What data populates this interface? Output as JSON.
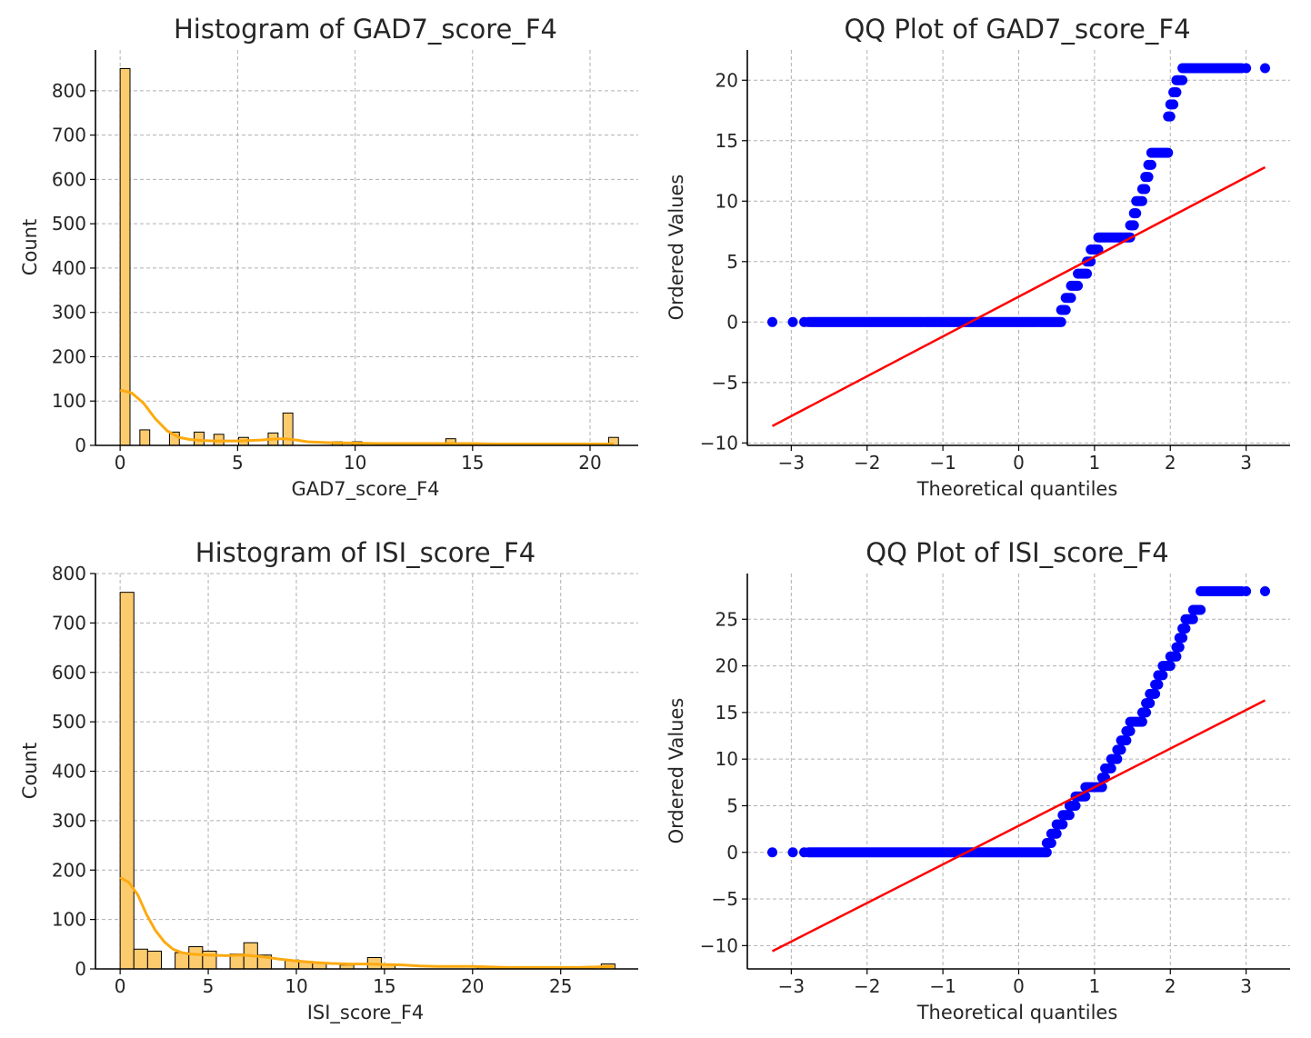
{
  "colors": {
    "bar_fill": "#FCCB6E",
    "bar_edge": "#000000",
    "kde_line": "#FDAA0F",
    "qq_points": "#0000FF",
    "qq_line": "#FF0000",
    "grid": "#B0B0B0"
  },
  "chart_data": [
    {
      "type": "bar",
      "subtype": "histogram-with-kde",
      "title": "Histogram of GAD7_score_F4",
      "xlabel": "GAD7_score_F4",
      "ylabel": "Count",
      "xlim": [
        -1.05,
        22.05
      ],
      "ylim": [
        0,
        892
      ],
      "xticks": [
        0,
        5,
        10,
        15,
        20
      ],
      "yticks": [
        0,
        100,
        200,
        300,
        400,
        500,
        600,
        700,
        800
      ],
      "grid": true,
      "bin_width": 0.42,
      "bins": [
        {
          "x": 0.0,
          "count": 850
        },
        {
          "x": 0.84,
          "count": 35
        },
        {
          "x": 2.1,
          "count": 30
        },
        {
          "x": 3.15,
          "count": 30
        },
        {
          "x": 3.99,
          "count": 25
        },
        {
          "x": 5.04,
          "count": 18
        },
        {
          "x": 6.3,
          "count": 28
        },
        {
          "x": 6.93,
          "count": 73
        },
        {
          "x": 9.03,
          "count": 8
        },
        {
          "x": 9.87,
          "count": 8
        },
        {
          "x": 10.92,
          "count": 5
        },
        {
          "x": 13.86,
          "count": 15
        },
        {
          "x": 18.9,
          "count": 3
        },
        {
          "x": 20.79,
          "count": 18
        }
      ],
      "kde": {
        "x": [
          0,
          0.5,
          1,
          1.5,
          2,
          2.5,
          3,
          3.5,
          4,
          5,
          6,
          6.5,
          7,
          7.5,
          8,
          9,
          10,
          11,
          12,
          13,
          14,
          15,
          16,
          17,
          18,
          19,
          20,
          21
        ],
        "y": [
          125,
          118,
          95,
          60,
          33,
          18,
          13,
          11,
          10,
          10,
          12,
          14,
          15,
          12,
          8,
          6,
          5,
          4,
          4,
          4,
          4,
          4,
          3,
          3,
          3,
          3,
          3,
          3
        ]
      }
    },
    {
      "type": "scatter",
      "subtype": "qq-plot",
      "title": "QQ Plot of GAD7_score_F4",
      "xlabel": "Theoretical quantiles",
      "ylabel": "Ordered Values",
      "xlim": [
        -3.58,
        3.58
      ],
      "ylim": [
        -10.2,
        22.5
      ],
      "xticks": [
        -3,
        -2,
        -1,
        0,
        1,
        2,
        3
      ],
      "yticks": [
        -10,
        -5,
        0,
        5,
        10,
        15,
        20
      ],
      "grid": true,
      "steps": [
        {
          "value": 0,
          "q_start": -3.25,
          "q_end": 0.56
        },
        {
          "value": 1,
          "q_start": 0.56,
          "q_end": 0.62
        },
        {
          "value": 2,
          "q_start": 0.62,
          "q_end": 0.69
        },
        {
          "value": 3,
          "q_start": 0.69,
          "q_end": 0.78
        },
        {
          "value": 4,
          "q_start": 0.78,
          "q_end": 0.9
        },
        {
          "value": 5,
          "q_start": 0.9,
          "q_end": 0.95
        },
        {
          "value": 6,
          "q_start": 0.95,
          "q_end": 1.05
        },
        {
          "value": 7,
          "q_start": 1.05,
          "q_end": 1.47
        },
        {
          "value": 8,
          "q_start": 1.47,
          "q_end": 1.52
        },
        {
          "value": 9,
          "q_start": 1.52,
          "q_end": 1.55
        },
        {
          "value": 10,
          "q_start": 1.55,
          "q_end": 1.63
        },
        {
          "value": 11,
          "q_start": 1.63,
          "q_end": 1.67
        },
        {
          "value": 12,
          "q_start": 1.67,
          "q_end": 1.71
        },
        {
          "value": 13,
          "q_start": 1.71,
          "q_end": 1.75
        },
        {
          "value": 14,
          "q_start": 1.75,
          "q_end": 1.97
        },
        {
          "value": 17,
          "q_start": 1.97,
          "q_end": 2.0
        },
        {
          "value": 18,
          "q_start": 2.0,
          "q_end": 2.04
        },
        {
          "value": 19,
          "q_start": 2.04,
          "q_end": 2.08
        },
        {
          "value": 20,
          "q_start": 2.08,
          "q_end": 2.16
        },
        {
          "value": 21,
          "q_start": 2.16,
          "q_end": 3.0
        },
        {
          "value": 21,
          "q_start": 3.25,
          "q_end": 3.25
        }
      ],
      "isolated_points": [
        {
          "x": -3.25,
          "y": 0
        },
        {
          "x": -2.98,
          "y": 0
        },
        {
          "x": -2.83,
          "y": 0
        },
        {
          "x": 3.0,
          "y": 21
        },
        {
          "x": 3.25,
          "y": 21
        }
      ],
      "fit_line": {
        "x": [
          -3.25,
          3.25
        ],
        "y": [
          -8.6,
          12.8
        ]
      }
    },
    {
      "type": "bar",
      "subtype": "histogram-with-kde",
      "title": "Histogram of ISI_score_F4",
      "xlabel": "ISI_score_F4",
      "ylabel": "Count",
      "xlim": [
        -1.4,
        29.4
      ],
      "ylim": [
        0,
        800
      ],
      "xticks": [
        0,
        5,
        10,
        15,
        20,
        25
      ],
      "yticks": [
        0,
        100,
        200,
        300,
        400,
        500,
        600,
        700,
        800
      ],
      "grid": true,
      "bin_width": 0.78,
      "bins": [
        {
          "x": 0.0,
          "count": 762
        },
        {
          "x": 0.78,
          "count": 40
        },
        {
          "x": 1.56,
          "count": 36
        },
        {
          "x": 3.12,
          "count": 33
        },
        {
          "x": 3.9,
          "count": 45
        },
        {
          "x": 4.68,
          "count": 36
        },
        {
          "x": 6.24,
          "count": 30
        },
        {
          "x": 7.02,
          "count": 53
        },
        {
          "x": 7.8,
          "count": 28
        },
        {
          "x": 9.36,
          "count": 18
        },
        {
          "x": 10.14,
          "count": 15
        },
        {
          "x": 10.92,
          "count": 13
        },
        {
          "x": 12.48,
          "count": 8
        },
        {
          "x": 14.04,
          "count": 23
        },
        {
          "x": 14.82,
          "count": 8
        },
        {
          "x": 20.28,
          "count": 4
        },
        {
          "x": 27.3,
          "count": 10
        }
      ],
      "kde": {
        "x": [
          0,
          0.5,
          1,
          1.5,
          2,
          2.5,
          3,
          3.5,
          4,
          5,
          6,
          7,
          8,
          9,
          10,
          11,
          12,
          13,
          14,
          15,
          16,
          17,
          18,
          19,
          20,
          21,
          22,
          23,
          24,
          25,
          26,
          27,
          28
        ],
        "y": [
          185,
          175,
          150,
          110,
          78,
          55,
          40,
          33,
          30,
          28,
          27,
          28,
          25,
          20,
          16,
          13,
          11,
          10,
          10,
          9,
          8,
          6,
          5,
          5,
          5,
          4,
          3,
          3,
          3,
          3,
          3,
          4,
          5
        ]
      }
    },
    {
      "type": "scatter",
      "subtype": "qq-plot",
      "title": "QQ Plot of ISI_score_F4",
      "xlabel": "Theoretical quantiles",
      "ylabel": "Ordered Values",
      "xlim": [
        -3.58,
        3.58
      ],
      "ylim": [
        -12.5,
        29.9
      ],
      "xticks": [
        -3,
        -2,
        -1,
        0,
        1,
        2,
        3
      ],
      "yticks": [
        -10,
        -5,
        0,
        5,
        10,
        15,
        20,
        25
      ],
      "grid": true,
      "steps": [
        {
          "value": 0,
          "q_start": -3.25,
          "q_end": 0.37
        },
        {
          "value": 1,
          "q_start": 0.37,
          "q_end": 0.43
        },
        {
          "value": 2,
          "q_start": 0.43,
          "q_end": 0.5
        },
        {
          "value": 3,
          "q_start": 0.5,
          "q_end": 0.58
        },
        {
          "value": 4,
          "q_start": 0.58,
          "q_end": 0.67
        },
        {
          "value": 5,
          "q_start": 0.67,
          "q_end": 0.75
        },
        {
          "value": 6,
          "q_start": 0.75,
          "q_end": 0.88
        },
        {
          "value": 7,
          "q_start": 0.88,
          "q_end": 1.1
        },
        {
          "value": 8,
          "q_start": 1.1,
          "q_end": 1.14
        },
        {
          "value": 9,
          "q_start": 1.14,
          "q_end": 1.22
        },
        {
          "value": 10,
          "q_start": 1.22,
          "q_end": 1.3
        },
        {
          "value": 11,
          "q_start": 1.3,
          "q_end": 1.35
        },
        {
          "value": 12,
          "q_start": 1.35,
          "q_end": 1.42
        },
        {
          "value": 13,
          "q_start": 1.42,
          "q_end": 1.47
        },
        {
          "value": 14,
          "q_start": 1.47,
          "q_end": 1.63
        },
        {
          "value": 15,
          "q_start": 1.63,
          "q_end": 1.68
        },
        {
          "value": 16,
          "q_start": 1.68,
          "q_end": 1.73
        },
        {
          "value": 17,
          "q_start": 1.73,
          "q_end": 1.8
        },
        {
          "value": 18,
          "q_start": 1.8,
          "q_end": 1.84
        },
        {
          "value": 19,
          "q_start": 1.84,
          "q_end": 1.9
        },
        {
          "value": 20,
          "q_start": 1.9,
          "q_end": 2.0
        },
        {
          "value": 21,
          "q_start": 2.0,
          "q_end": 2.08
        },
        {
          "value": 22,
          "q_start": 2.08,
          "q_end": 2.12
        },
        {
          "value": 23,
          "q_start": 2.12,
          "q_end": 2.16
        },
        {
          "value": 24,
          "q_start": 2.16,
          "q_end": 2.2
        },
        {
          "value": 25,
          "q_start": 2.2,
          "q_end": 2.3
        },
        {
          "value": 26,
          "q_start": 2.3,
          "q_end": 2.4
        },
        {
          "value": 28,
          "q_start": 2.4,
          "q_end": 3.0
        }
      ],
      "isolated_points": [
        {
          "x": -3.25,
          "y": 0
        },
        {
          "x": -2.98,
          "y": 0
        },
        {
          "x": -2.83,
          "y": 0
        },
        {
          "x": 3.0,
          "y": 28
        },
        {
          "x": 3.25,
          "y": 28
        }
      ],
      "fit_line": {
        "x": [
          -3.25,
          3.25
        ],
        "y": [
          -10.6,
          16.3
        ]
      }
    }
  ]
}
